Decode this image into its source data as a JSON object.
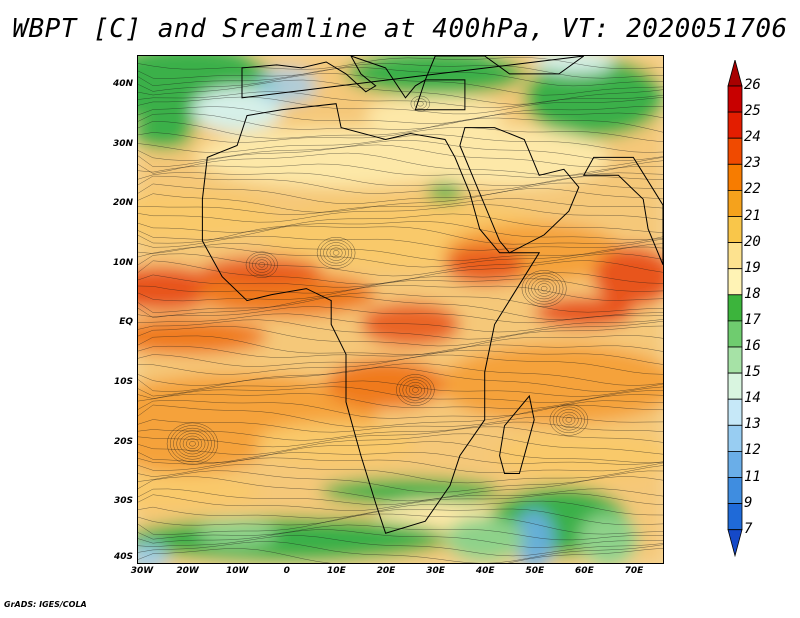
{
  "title": "WBPT [C] and Sreamline at 400hPa, VT: 2020051706",
  "credit": "GrADS: IGES/COLA",
  "map": {
    "lon_range": [
      -30,
      76
    ],
    "lat_range": [
      -40,
      45
    ],
    "y_ticks": [
      "40N",
      "30N",
      "20N",
      "10N",
      "EQ",
      "10S",
      "20S",
      "30S",
      "40S"
    ],
    "x_ticks": [
      "30W",
      "20W",
      "10W",
      "0",
      "10E",
      "20E",
      "30E",
      "40E",
      "50E",
      "60E",
      "70E"
    ],
    "fields": [
      "wet-bulb potential temperature",
      "streamlines"
    ]
  },
  "colorbar": {
    "levels": [
      "26",
      "25",
      "24",
      "23",
      "22",
      "21",
      "20",
      "19",
      "18",
      "17",
      "16",
      "15",
      "14",
      "13",
      "12",
      "11",
      "9",
      "7"
    ],
    "colors": [
      "#a80000",
      "#c80000",
      "#e31d00",
      "#f04a00",
      "#f77c00",
      "#f5a21c",
      "#f9c64a",
      "#fde28f",
      "#fff3b5",
      "#3cb43c",
      "#6fcc6f",
      "#a6e2a6",
      "#d9f5e0",
      "#c6e8f8",
      "#98cdf2",
      "#6aaee8",
      "#3f8de0",
      "#1f6ad8",
      "#1549c8"
    ]
  }
}
